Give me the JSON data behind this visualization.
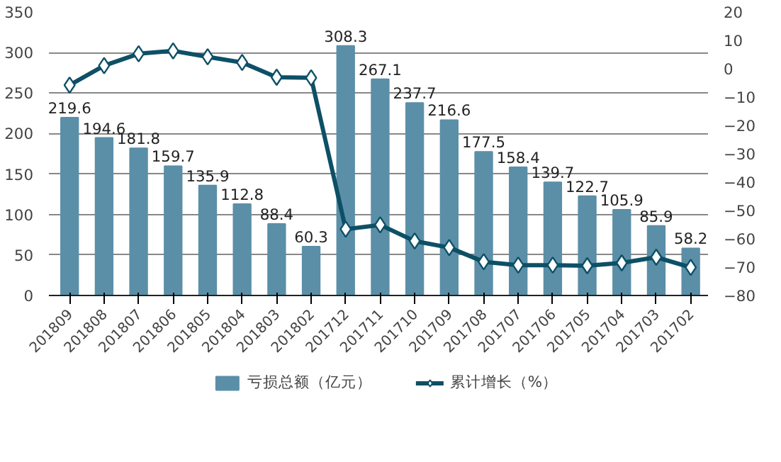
{
  "chart_data": {
    "type": "bar",
    "categories": [
      "201809",
      "201808",
      "201807",
      "201806",
      "201805",
      "201804",
      "201803",
      "201802",
      "201712",
      "201711",
      "201710",
      "201709",
      "201708",
      "201707",
      "201706",
      "201705",
      "201704",
      "201703",
      "201702"
    ],
    "series": [
      {
        "name": "亏损总额（亿元）",
        "color": "#5b8fa8",
        "values": [
          219.6,
          194.6,
          181.8,
          159.7,
          135.9,
          112.8,
          88.4,
          60.3,
          308.3,
          267.1,
          237.7,
          216.6,
          177.5,
          158.4,
          139.7,
          122.7,
          105.9,
          85.9,
          58.2
        ],
        "value_labels": [
          "219.6",
          "194.6",
          "181.8",
          "159.7",
          "135.9",
          "112.8",
          "88.4",
          "60.3",
          "308.3",
          "267.1",
          "237.7",
          "216.6",
          "177.5",
          "158.4",
          "139.7",
          "122.7",
          "105.9",
          "85.9",
          "58.2"
        ]
      },
      {
        "name": "累计增长（%）",
        "type": "line",
        "axis": "y2",
        "color": "#0d5066",
        "marker": "diamond",
        "values": [
          -5.8,
          1.1,
          5.3,
          6.3,
          4.2,
          2.2,
          -3.0,
          -3.2,
          -56.6,
          -55.1,
          -60.8,
          -63.1,
          -68.1,
          -69.3,
          -69.3,
          -69.5,
          -68.5,
          -66.5,
          -70.1
        ]
      }
    ],
    "ylim": [
      0,
      350
    ],
    "yticks": [
      0,
      50,
      100,
      150,
      200,
      250,
      300,
      350
    ],
    "y2lim": [
      -80,
      20
    ],
    "y2ticks": [
      -80,
      -70,
      -60,
      -50,
      -40,
      -30,
      -20,
      -10,
      0,
      10,
      20
    ],
    "grid": "y",
    "legend": "bottom"
  }
}
